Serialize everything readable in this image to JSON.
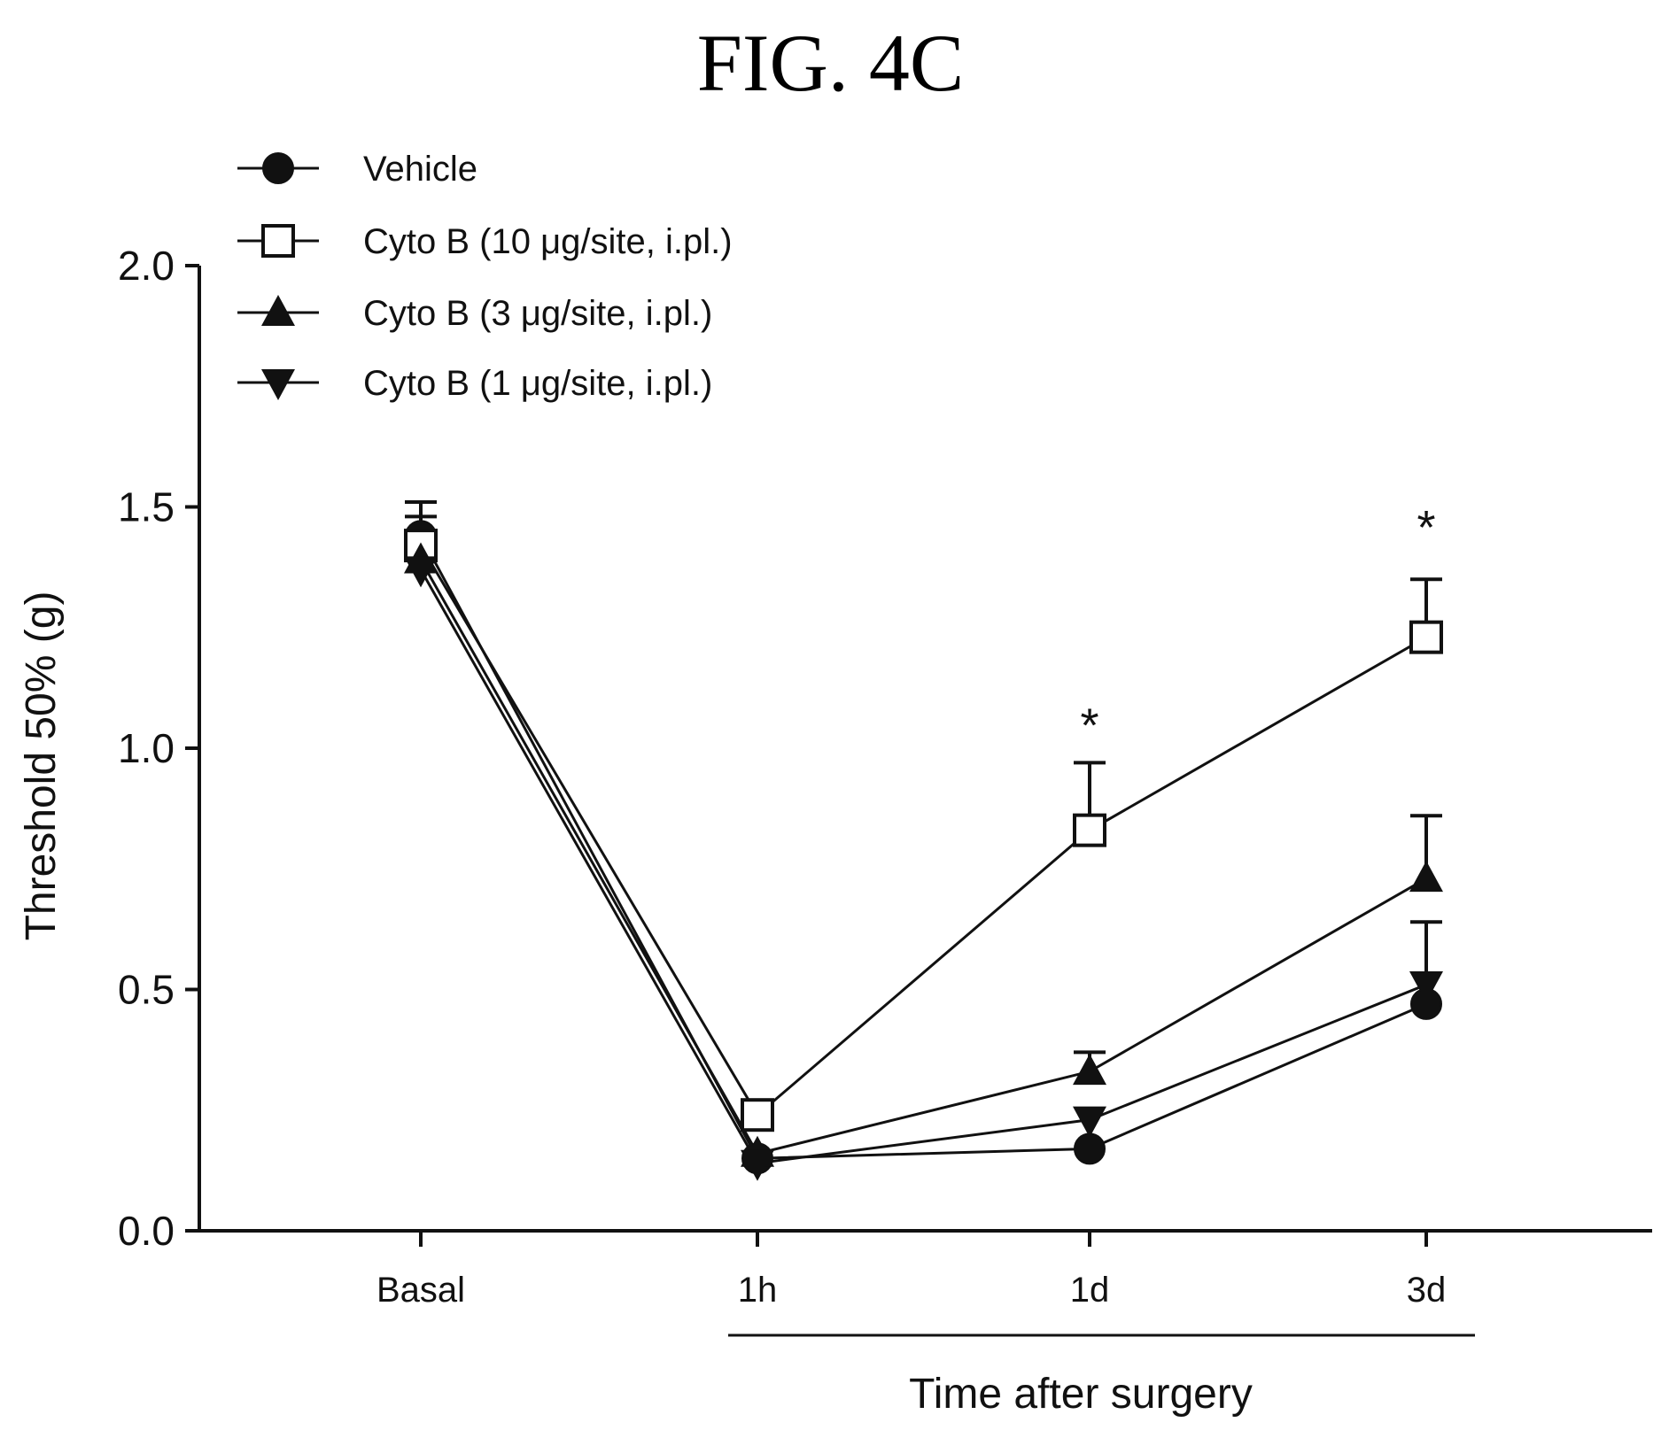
{
  "figure": {
    "title": "FIG. 4C"
  },
  "chart_data": {
    "type": "line",
    "categories": [
      "Basal",
      "1h",
      "1d",
      "3d"
    ],
    "ylabel": "Threshold 50% (g)",
    "xlabel": "Time after surgery",
    "ylim": [
      0,
      2.0
    ],
    "yticks": [
      "0.0",
      "0.5",
      "1.0",
      "1.5",
      "2.0"
    ],
    "legend_position": "top-left",
    "series": [
      {
        "name": "Vehicle",
        "marker": "circle",
        "values": [
          1.44,
          0.15,
          0.17,
          0.47
        ],
        "errors": [
          0.07,
          0.01,
          0.01,
          0.02
        ]
      },
      {
        "name": "Cyto B (10  μg/site, i.pl.)",
        "marker": "square-open",
        "values": [
          1.42,
          0.24,
          0.83,
          1.23
        ],
        "errors": [
          0.06,
          0.02,
          0.14,
          0.12
        ]
      },
      {
        "name": "Cyto B (3 μg/site, i.pl.)",
        "marker": "triangle-up",
        "values": [
          1.39,
          0.16,
          0.33,
          0.73
        ],
        "errors": [
          0.05,
          0.01,
          0.04,
          0.13
        ]
      },
      {
        "name": "Cyto B (1 μg/site, i.pl.)",
        "marker": "triangle-down",
        "values": [
          1.37,
          0.14,
          0.23,
          0.51
        ],
        "errors": [
          0.05,
          0.01,
          0.02,
          0.13
        ]
      }
    ],
    "annotations": [
      {
        "text": "*",
        "category": "1d",
        "y": 1.08
      },
      {
        "text": "*",
        "category": "3d",
        "y": 1.49
      }
    ]
  }
}
